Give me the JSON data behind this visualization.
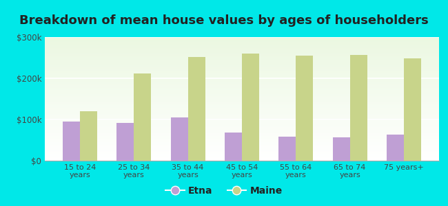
{
  "title": "Breakdown of mean house values by ages of householders",
  "categories": [
    "15 to 24\nyears",
    "25 to 34\nyears",
    "35 to 44\nyears",
    "45 to 54\nyears",
    "55 to 64\nyears",
    "65 to 74\nyears",
    "75 years+"
  ],
  "etna_values": [
    95000,
    92000,
    105000,
    68000,
    58000,
    56000,
    63000
  ],
  "maine_values": [
    120000,
    212000,
    252000,
    260000,
    255000,
    257000,
    248000
  ],
  "ylim": [
    0,
    300000
  ],
  "yticks": [
    0,
    100000,
    200000,
    300000
  ],
  "ytick_labels": [
    "$0",
    "$100k",
    "$200k",
    "$300k"
  ],
  "etna_color": "#bf9fd4",
  "maine_color": "#c8d48a",
  "background_color": "#00e8e8",
  "title_fontsize": 13,
  "legend_labels": [
    "Etna",
    "Maine"
  ],
  "bar_width": 0.32
}
